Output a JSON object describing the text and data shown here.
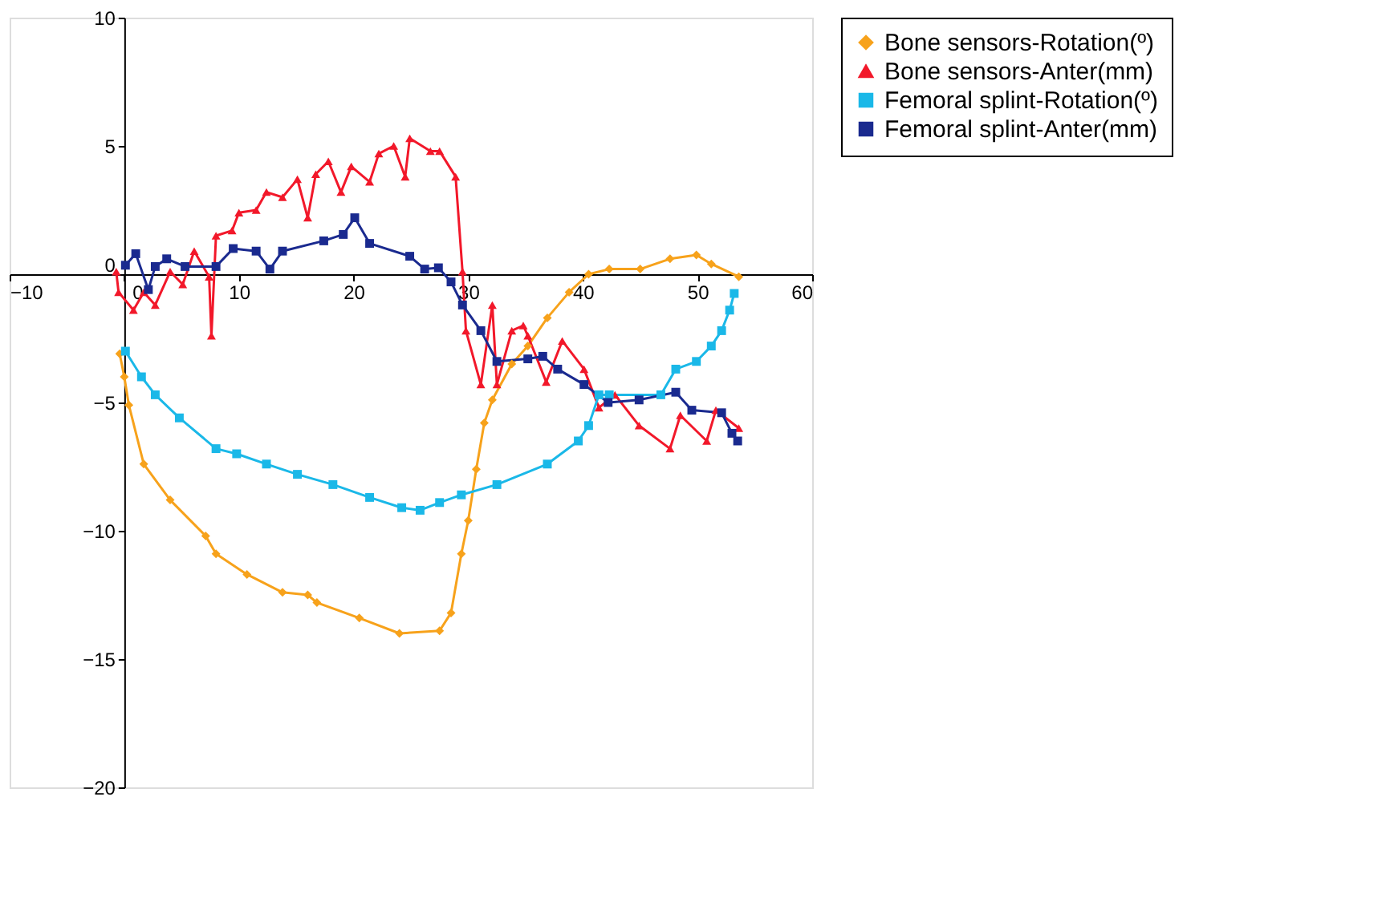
{
  "chart_data": {
    "type": "line",
    "xlim": [
      -10,
      60
    ],
    "ylim": [
      -20,
      10
    ],
    "xticks": [
      -10,
      0,
      10,
      20,
      30,
      40,
      50,
      60
    ],
    "yticks": [
      -20,
      -15,
      -10,
      -5,
      0,
      5,
      10
    ],
    "grid": false,
    "legend": "right",
    "line_style": "solid",
    "series": [
      {
        "name": "Bone sensors-Rotation(º)",
        "color": "#f7a21b",
        "marker": "diamond",
        "x": [
          -0.4,
          0,
          0.4,
          1.7,
          4,
          7.1,
          8,
          10.7,
          13.8,
          16,
          16.8,
          20.5,
          24,
          27.5,
          28.5,
          29.4,
          30,
          30.7,
          31.4,
          32.1,
          33.8,
          35.2,
          36.9,
          38.8,
          40.5,
          42.3,
          45,
          47.6,
          49.9,
          51.2,
          53.6
        ],
        "values": [
          -3.1,
          -4.0,
          -5.1,
          -7.4,
          -8.8,
          -10.2,
          -10.9,
          -11.7,
          -12.4,
          -12.5,
          -12.8,
          -13.4,
          -14.0,
          -13.9,
          -13.2,
          -10.9,
          -9.6,
          -7.6,
          -5.8,
          -4.9,
          -3.5,
          -2.8,
          -1.7,
          -0.7,
          0,
          0.2,
          0.2,
          0.6,
          0.75,
          0.4,
          -0.1
        ]
      },
      {
        "name": "Bone sensors-Anter(mm)",
        "color": "#f2182a",
        "marker": "triangle",
        "x": [
          -0.7,
          -0.5,
          0.8,
          1.7,
          2.7,
          4,
          5.1,
          6.1,
          7.4,
          7.6,
          8,
          9.4,
          10,
          11.5,
          12.4,
          13.8,
          15.1,
          16,
          16.7,
          17.8,
          18.9,
          19.8,
          21.4,
          22.2,
          23.5,
          24.5,
          24.9,
          26.7,
          27.5,
          28.9,
          29.5,
          29.8,
          31.1,
          32.1,
          32.5,
          33.8,
          34.8,
          35.2,
          36.8,
          38.2,
          40.1,
          41.4,
          42.8,
          44.9,
          47.6,
          48.5,
          50.8,
          51.6,
          53.6
        ],
        "values": [
          0.1,
          -0.7,
          -1.4,
          -0.7,
          -1.2,
          0.1,
          -0.4,
          0.9,
          -0.1,
          -2.4,
          1.5,
          1.7,
          2.4,
          2.5,
          3.2,
          3.0,
          3.7,
          2.2,
          3.9,
          4.4,
          3.2,
          4.2,
          3.6,
          4.7,
          5.0,
          3.8,
          5.3,
          4.8,
          4.8,
          3.8,
          0.1,
          -2.2,
          -4.3,
          -1.2,
          -4.3,
          -2.2,
          -2.0,
          -2.4,
          -4.2,
          -2.6,
          -3.7,
          -5.2,
          -4.7,
          -5.9,
          -6.8,
          -5.5,
          -6.5,
          -5.3,
          -6.0
        ]
      },
      {
        "name": "Femoral splint-Rotation(º)",
        "color": "#1ab8e8",
        "marker": "square",
        "x": [
          0.1,
          1.5,
          2.7,
          4.8,
          8,
          9.8,
          12.4,
          15.1,
          18.2,
          21.4,
          24.2,
          25.8,
          27.5,
          29.4,
          32.5,
          36.9,
          39.6,
          40.5,
          41.4,
          42.3,
          46.8,
          48.1,
          49.9,
          51.2,
          52.1,
          52.8,
          53.2
        ],
        "values": [
          -3.0,
          -4.0,
          -4.7,
          -5.6,
          -6.8,
          -7.0,
          -7.4,
          -7.8,
          -8.2,
          -8.7,
          -9.1,
          -9.2,
          -8.9,
          -8.6,
          -8.2,
          -7.4,
          -6.5,
          -5.9,
          -4.7,
          -4.7,
          -4.7,
          -3.7,
          -3.4,
          -2.8,
          -2.2,
          -1.4,
          -0.75
        ]
      },
      {
        "name": "Femoral splint-Anter(mm)",
        "color": "#1a2a8f",
        "marker": "square",
        "x": [
          0.1,
          1,
          2.1,
          2.7,
          3.7,
          5.3,
          8,
          9.5,
          11.5,
          12.7,
          13.8,
          17.4,
          19.1,
          20.1,
          21.4,
          24.9,
          26.2,
          27.4,
          28.5,
          29.5,
          31.1,
          32.5,
          35.2,
          36.5,
          37.8,
          40.1,
          42.2,
          44.9,
          48.1,
          49.5,
          52.1,
          53,
          53.5
        ],
        "values": [
          0.35,
          0.8,
          -0.6,
          0.3,
          0.6,
          0.3,
          0.3,
          1.0,
          0.9,
          0.2,
          0.9,
          1.3,
          1.55,
          2.2,
          1.2,
          0.7,
          0.2,
          0.25,
          -0.3,
          -1.2,
          -2.2,
          -3.4,
          -3.3,
          -3.2,
          -3.7,
          -4.3,
          -5.0,
          -4.9,
          -4.6,
          -5.3,
          -5.4,
          -6.2,
          -6.5
        ]
      }
    ]
  }
}
